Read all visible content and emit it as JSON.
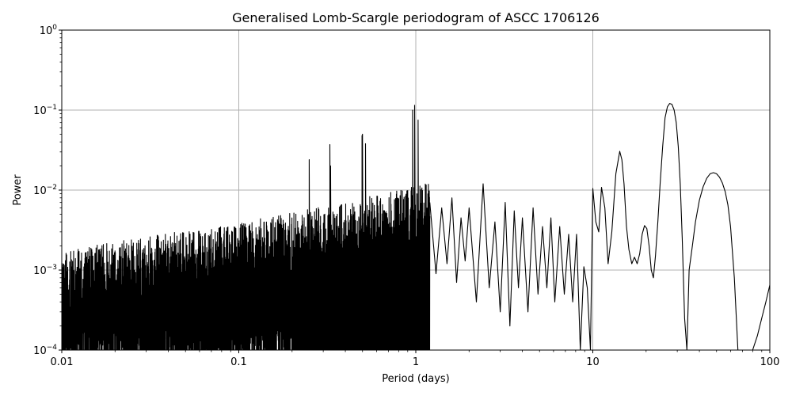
{
  "chart_data": {
    "type": "line",
    "title": "Generalised Lomb-Scargle periodogram of ASCC 1706126",
    "xlabel": "Period (days)",
    "ylabel": "Power",
    "x_scale": "log",
    "y_scale": "log",
    "xlim": [
      0.01,
      100
    ],
    "ylim": [
      0.0001,
      1
    ],
    "grid": true,
    "x_ticks": [
      {
        "value": 0.01,
        "label": "0.01"
      },
      {
        "value": 0.1,
        "label": "0.1"
      },
      {
        "value": 1,
        "label": "1"
      },
      {
        "value": 10,
        "label": "10"
      },
      {
        "value": 100,
        "label": "100"
      }
    ],
    "y_ticks": [
      {
        "value": 0.0001,
        "base": "10",
        "exp": "−4"
      },
      {
        "value": 0.001,
        "base": "10",
        "exp": "−3"
      },
      {
        "value": 0.01,
        "base": "10",
        "exp": "−2"
      },
      {
        "value": 0.1,
        "base": "10",
        "exp": "−1"
      },
      {
        "value": 1,
        "base": "10",
        "exp": "0"
      }
    ],
    "series": [
      {
        "color": "#000000",
        "x": [
          1.2,
          1.3,
          1.4,
          1.5,
          1.6,
          1.7,
          1.8,
          1.9,
          2.0,
          2.2,
          2.4,
          2.6,
          2.8,
          3.0,
          3.2,
          3.4,
          3.6,
          3.8,
          4.0,
          4.3,
          4.6,
          4.9,
          5.2,
          5.5,
          5.8,
          6.1,
          6.5,
          6.9,
          7.3,
          7.7,
          8.1,
          8.5,
          8.9,
          9.3,
          9.7,
          10.0,
          10.4,
          10.8,
          11.2,
          11.7,
          12.2,
          12.8,
          13.5,
          14.2,
          14.6,
          15.0,
          15.5,
          16.0,
          16.6,
          17.2,
          17.8,
          18.4,
          19.0,
          19.6,
          20.2,
          20.8,
          21.4,
          22.0,
          22.6,
          23.3,
          24.0,
          24.8,
          25.6,
          26.4,
          27.2,
          28.0,
          28.8,
          29.6,
          30.4,
          31.2,
          32.0,
          33.0,
          34.0,
          35.0,
          36.5,
          38.0,
          40.0,
          42.0,
          44.0,
          46.0,
          48.0,
          50.0,
          52.0,
          54.0,
          56.0,
          58.0,
          60.0,
          63.0,
          66.0,
          70.0,
          75.0,
          80.0,
          85.0,
          90.0,
          95.0,
          100.0
        ],
        "y": [
          0.007,
          0.0009,
          0.006,
          0.0012,
          0.008,
          0.0007,
          0.0045,
          0.0013,
          0.006,
          0.0004,
          0.012,
          0.0006,
          0.004,
          0.0003,
          0.007,
          0.0002,
          0.0055,
          0.0006,
          0.0045,
          0.0003,
          0.006,
          0.0005,
          0.0035,
          0.0006,
          0.0045,
          0.0004,
          0.0035,
          0.0005,
          0.0028,
          0.0004,
          0.0028,
          0.0001,
          0.0011,
          0.0006,
          0.0001,
          0.0105,
          0.004,
          0.003,
          0.0108,
          0.006,
          0.0012,
          0.003,
          0.016,
          0.0305,
          0.024,
          0.012,
          0.0035,
          0.0018,
          0.0012,
          0.00145,
          0.0012,
          0.0016,
          0.0028,
          0.0036,
          0.0033,
          0.002,
          0.001,
          0.0008,
          0.0015,
          0.004,
          0.012,
          0.035,
          0.08,
          0.11,
          0.121,
          0.118,
          0.1,
          0.07,
          0.035,
          0.012,
          0.0025,
          0.00025,
          0.0001,
          0.001,
          0.002,
          0.004,
          0.0075,
          0.011,
          0.014,
          0.016,
          0.0165,
          0.016,
          0.0145,
          0.0122,
          0.0095,
          0.0065,
          0.0035,
          0.0008,
          0.0001,
          0.0001,
          0.0001,
          0.0001,
          0.00015,
          0.00025,
          0.0004,
          0.00065
        ]
      }
    ]
  }
}
